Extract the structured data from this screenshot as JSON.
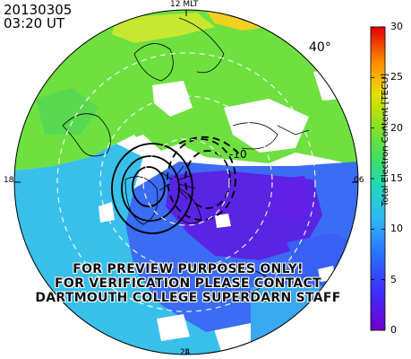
{
  "header": {
    "date": "20130305",
    "time": "03:20 UT"
  },
  "map": {
    "projection": "polar",
    "mlt_labels": {
      "top": "12 MLT",
      "left": "18",
      "right": "06",
      "bottom": "24"
    },
    "latitude_label": "40°",
    "contour_label": "-10"
  },
  "colorbar": {
    "title": "Total Electron Content [TECU]",
    "ticks": [
      "0",
      "5",
      "10",
      "15",
      "20",
      "25",
      "30"
    ],
    "min": 0,
    "max": 30,
    "colormap": [
      "#7000c8",
      "#3040ff",
      "#30a0ff",
      "#20d8d0",
      "#40e040",
      "#a0e020",
      "#f0d000",
      "#ff7000",
      "#e00000"
    ]
  },
  "watermark": {
    "line1": "FOR PREVIEW PURPOSES ONLY!",
    "line2": "FOR VERIFICATION PLEASE CONTACT",
    "line3": "DARTMOUTH COLLEGE SUPERDARN STAFF"
  },
  "colors": {
    "green": "#6ee040",
    "cyan": "#38c8e8",
    "blue": "#3060f0",
    "purple": "#5a20e0",
    "yellow": "#e0e020",
    "orange": "#ff8000"
  }
}
